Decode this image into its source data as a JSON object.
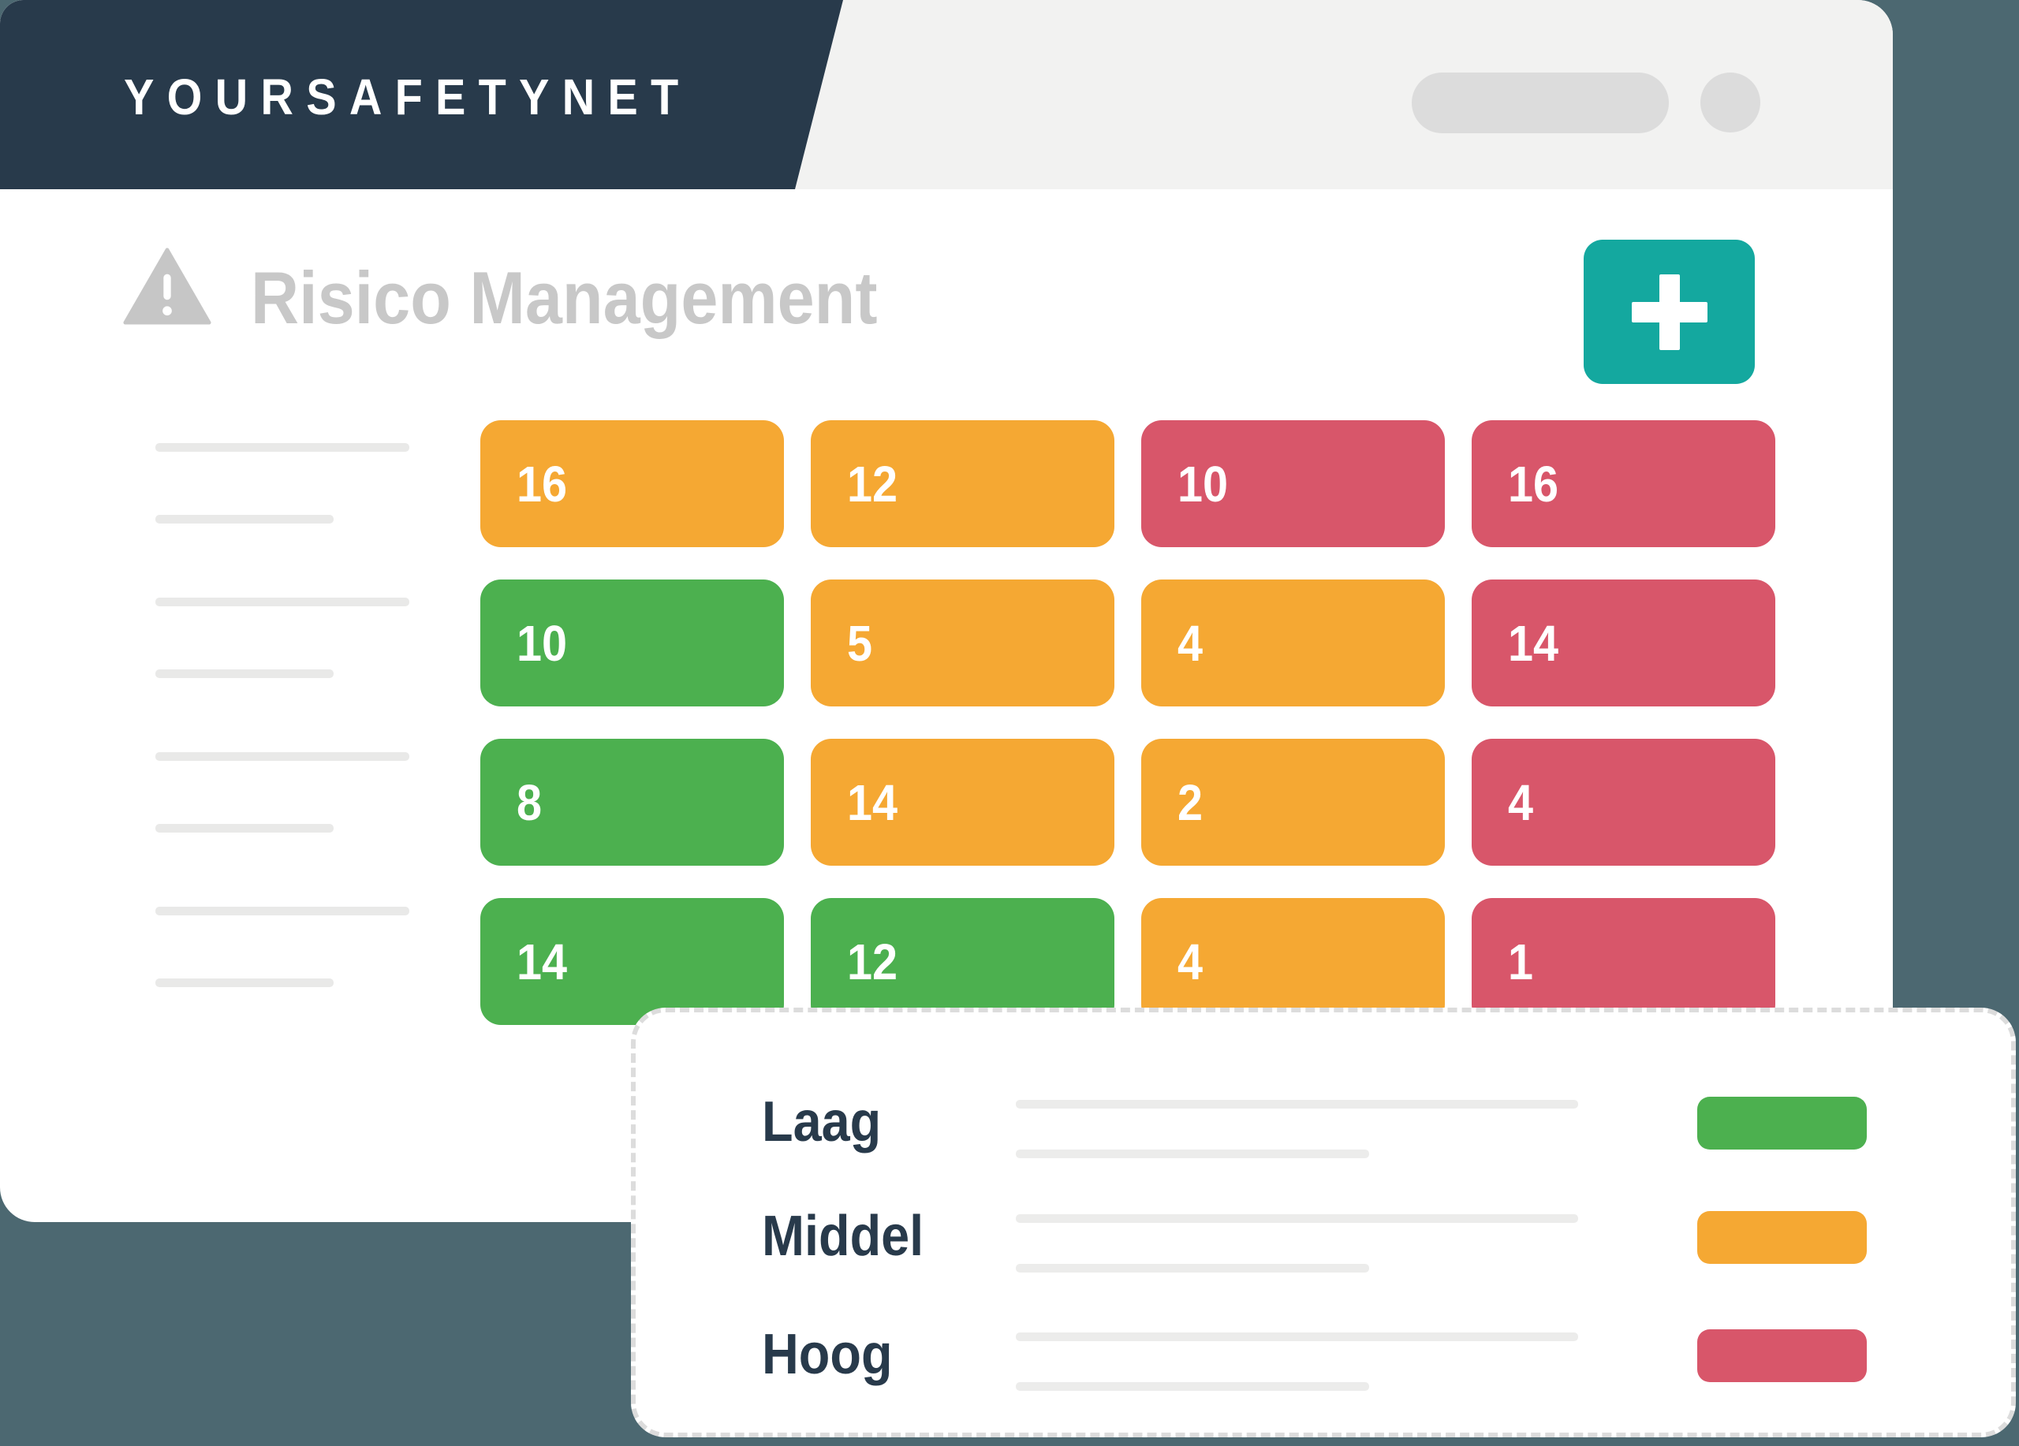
{
  "app": {
    "logo_text": "YOURSAFETYNET",
    "page_title": "Risico Management",
    "add_button_label": "+"
  },
  "colors": {
    "background": "#4C6871",
    "navy": "#283A4B",
    "header_band": "#F2F2F1",
    "accent_teal": "#14A89F",
    "title_gray": "#C8C8C8",
    "laag_green": "#4CB04F",
    "middel_orange": "#F5A833",
    "hoog_red": "#D8566A"
  },
  "risk_grid": {
    "rows": 4,
    "cols": 4,
    "cells": [
      {
        "value": "16",
        "level": "middel"
      },
      {
        "value": "12",
        "level": "middel"
      },
      {
        "value": "10",
        "level": "hoog"
      },
      {
        "value": "16",
        "level": "hoog"
      },
      {
        "value": "10",
        "level": "laag"
      },
      {
        "value": "5",
        "level": "middel"
      },
      {
        "value": "4",
        "level": "middel"
      },
      {
        "value": "14",
        "level": "hoog"
      },
      {
        "value": "8",
        "level": "laag"
      },
      {
        "value": "14",
        "level": "middel"
      },
      {
        "value": "2",
        "level": "middel"
      },
      {
        "value": "4",
        "level": "hoog"
      },
      {
        "value": "14",
        "level": "laag"
      },
      {
        "value": "12",
        "level": "laag"
      },
      {
        "value": "4",
        "level": "middel"
      },
      {
        "value": "1",
        "level": "hoog"
      }
    ]
  },
  "legend": {
    "items": [
      {
        "label": "Laag",
        "level": "laag"
      },
      {
        "label": "Middel",
        "level": "middel"
      },
      {
        "label": "Hoog",
        "level": "hoog"
      }
    ]
  }
}
